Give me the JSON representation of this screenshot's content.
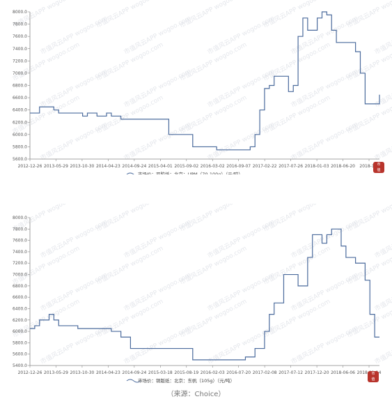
{
  "colors": {
    "line": "#4a6a9c",
    "axis": "#888888",
    "watermark": "#cfd3dc",
    "seal": "#b8342c"
  },
  "source_note": "（来源：Choice）",
  "chart_data": [
    {
      "type": "line",
      "x_ticks": [
        "2012-12-26",
        "2013-05-29",
        "2013-10-30",
        "2014-04-23",
        "2014-09-24",
        "2015-04-01",
        "2015-09-02",
        "2016-03-02",
        "2016-09-07",
        "2017-02-22",
        "2017-07-26",
        "2018-01-03",
        "2018-06-20",
        "2018-11-"
      ],
      "yticks": [
        5600,
        5800,
        6000,
        6200,
        6400,
        6600,
        6800,
        7000,
        7200,
        7400,
        7600,
        7800,
        8000
      ],
      "ylim": [
        5600,
        8000
      ],
      "grid": false,
      "series": [
        {
          "name": "市场价：双胶纸：北京：UPM（70-100g）（元/吨）",
          "x": [
            "2012-12",
            "2013-01",
            "2013-02",
            "2013-04",
            "2013-05",
            "2013-06",
            "2013-07",
            "2013-10",
            "2013-11",
            "2013-12",
            "2014-02",
            "2014-04",
            "2014-05",
            "2014-07",
            "2014-09",
            "2014-10",
            "2015-02",
            "2015-04",
            "2015-05",
            "2015-07",
            "2015-09",
            "2015-10",
            "2015-12",
            "2016-02",
            "2016-03",
            "2016-05",
            "2016-07",
            "2016-09",
            "2016-10",
            "2016-11",
            "2016-12",
            "2017-01",
            "2017-02",
            "2017-03",
            "2017-04",
            "2017-05",
            "2017-06",
            "2017-07",
            "2017-08",
            "2017-09",
            "2017-10",
            "2017-11",
            "2017-12",
            "2018-01",
            "2018-02",
            "2018-03",
            "2018-04",
            "2018-05",
            "2018-06",
            "2018-07",
            "2018-08",
            "2018-09",
            "2018-10",
            "2018-11",
            "2018-12",
            "2019-01"
          ],
          "values": [
            6350,
            6350,
            6450,
            6450,
            6400,
            6350,
            6350,
            6350,
            6300,
            6350,
            6300,
            6350,
            6300,
            6250,
            6250,
            6250,
            6250,
            6250,
            6000,
            6000,
            6000,
            5800,
            5800,
            5800,
            5750,
            5750,
            5750,
            5750,
            5800,
            6000,
            6400,
            6750,
            6800,
            6950,
            6950,
            6950,
            6700,
            6800,
            7600,
            7900,
            7700,
            7700,
            7900,
            8000,
            7950,
            7700,
            7500,
            7500,
            7500,
            7500,
            7350,
            7000,
            6500,
            6500,
            6500,
            6650
          ],
          "legend": "市场价：双胶纸：北京：UPM（70-100g）（元/吨）"
        }
      ]
    },
    {
      "type": "line",
      "x_ticks": [
        "2012-12-26",
        "2013-05-29",
        "2013-10-30",
        "2014-04-23",
        "2014-09-24",
        "2015-03-18",
        "2015-08-19",
        "2016-02-03",
        "2016-07-20",
        "2017-02-08",
        "2017-07-12",
        "2017-12-20",
        "2018-06-06",
        "2018-11-14"
      ],
      "yticks": [
        5400,
        5600,
        5800,
        6000,
        6200,
        6400,
        6600,
        6800,
        7000,
        7200,
        7400,
        7600,
        7800,
        8000
      ],
      "ylim": [
        5400,
        8000
      ],
      "grid": false,
      "series": [
        {
          "name": "市场价：铜版纸：北京：东帆（105g）（元/吨）",
          "x": [
            "2012-12",
            "2013-01",
            "2013-02",
            "2013-04",
            "2013-05",
            "2013-06",
            "2013-07",
            "2013-09",
            "2013-10",
            "2013-12",
            "2014-03",
            "2014-05",
            "2014-07",
            "2014-09",
            "2014-11",
            "2015-02",
            "2015-04",
            "2015-06",
            "2015-08",
            "2015-10",
            "2016-01",
            "2016-03",
            "2016-06",
            "2016-09",
            "2016-11",
            "2017-01",
            "2017-02",
            "2017-03",
            "2017-05",
            "2017-06",
            "2017-08",
            "2017-09",
            "2017-10",
            "2017-11",
            "2017-12",
            "2018-01",
            "2018-02",
            "2018-03",
            "2018-04",
            "2018-05",
            "2018-06",
            "2018-07",
            "2018-08",
            "2018-09",
            "2018-10",
            "2018-11",
            "2018-12",
            "2019-01"
          ],
          "values": [
            6050,
            6100,
            6200,
            6300,
            6200,
            6100,
            6100,
            6100,
            6050,
            6050,
            6050,
            6000,
            5900,
            5700,
            5700,
            5700,
            5700,
            5700,
            5700,
            5500,
            5500,
            5500,
            5500,
            5550,
            5700,
            6000,
            6300,
            6500,
            7000,
            7000,
            6800,
            6800,
            7300,
            7700,
            7700,
            7550,
            7700,
            7800,
            7800,
            7500,
            7300,
            7300,
            7200,
            7200,
            6900,
            6300,
            5900,
            5900
          ],
          "legend": "市场价：铜版纸：北京：东帆（105g）（元/吨）"
        }
      ]
    }
  ]
}
